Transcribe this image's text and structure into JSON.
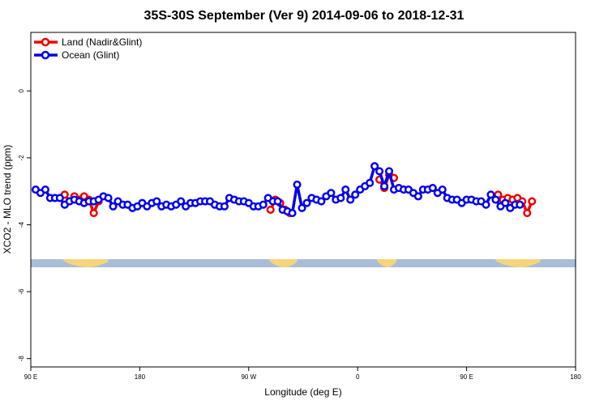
{
  "chart_data": {
    "type": "line",
    "title": "35S-30S September (Ver 9)   2014-09-06 to 2018-12-31",
    "xlabel": "Longitude (deg E)",
    "ylabel": "XCO2 - MLO trend (ppm)",
    "xlim": [
      90,
      540
    ],
    "ylim": [
      -8.25,
      1.75
    ],
    "x_ticks": [
      {
        "value": 90,
        "label": "90 E"
      },
      {
        "value": 180,
        "label": "180"
      },
      {
        "value": 270,
        "label": "90 W"
      },
      {
        "value": 360,
        "label": "0"
      },
      {
        "value": 450,
        "label": "90 E"
      },
      {
        "value": 540,
        "label": "180"
      }
    ],
    "y_ticks": [
      {
        "value": 0,
        "label": "0"
      },
      {
        "value": -2,
        "label": "-2"
      },
      {
        "value": -4,
        "label": "-4"
      },
      {
        "value": -6,
        "label": "-6"
      },
      {
        "value": -8,
        "label": "-8"
      }
    ],
    "legend_position": "top-left",
    "land_band": {
      "y": -5.15,
      "ocean_color": "#a9bdd8",
      "land_color": "#f5d57a",
      "land_segments": [
        [
          117,
          154
        ],
        [
          287,
          310
        ],
        [
          376,
          392
        ],
        [
          474,
          511
        ]
      ]
    },
    "series": [
      {
        "name": "Land (Nadir&Glint)",
        "color": "#ee0000",
        "segments": [
          [
            [
              118,
              -3.1
            ],
            [
              122,
              -3.3
            ],
            [
              126,
              -3.15
            ],
            [
              130,
              -3.25
            ],
            [
              134,
              -3.15
            ],
            [
              138,
              -3.25
            ],
            [
              142,
              -3.65
            ],
            [
              146,
              -3.3
            ]
          ],
          [
            [
              288,
              -3.55
            ],
            [
              292,
              -3.25
            ],
            [
              296,
              -3.35
            ],
            [
              300,
              -3.55
            ],
            [
              304,
              -3.65
            ]
          ],
          [
            [
              378,
              -2.65
            ],
            [
              382,
              -2.9
            ],
            [
              386,
              -2.5
            ],
            [
              390,
              -2.6
            ]
          ],
          [
            [
              476,
              -3.1
            ],
            [
              480,
              -3.25
            ],
            [
              484,
              -3.2
            ],
            [
              488,
              -3.25
            ],
            [
              492,
              -3.2
            ],
            [
              496,
              -3.3
            ],
            [
              500,
              -3.65
            ],
            [
              504,
              -3.3
            ]
          ]
        ]
      },
      {
        "name": "Ocean (Glint)",
        "color": "#0000ee",
        "points": [
          [
            94,
            -2.95
          ],
          [
            98,
            -3.05
          ],
          [
            102,
            -2.95
          ],
          [
            106,
            -3.2
          ],
          [
            110,
            -3.2
          ],
          [
            114,
            -3.2
          ],
          [
            118,
            -3.4
          ],
          [
            122,
            -3.3
          ],
          [
            126,
            -3.25
          ],
          [
            130,
            -3.3
          ],
          [
            134,
            -3.35
          ],
          [
            138,
            -3.3
          ],
          [
            142,
            -3.3
          ],
          [
            146,
            -3.25
          ],
          [
            150,
            -3.15
          ],
          [
            154,
            -3.2
          ],
          [
            158,
            -3.45
          ],
          [
            162,
            -3.3
          ],
          [
            166,
            -3.4
          ],
          [
            170,
            -3.4
          ],
          [
            174,
            -3.5
          ],
          [
            178,
            -3.45
          ],
          [
            182,
            -3.35
          ],
          [
            186,
            -3.45
          ],
          [
            190,
            -3.35
          ],
          [
            194,
            -3.3
          ],
          [
            198,
            -3.45
          ],
          [
            202,
            -3.4
          ],
          [
            206,
            -3.45
          ],
          [
            210,
            -3.4
          ],
          [
            214,
            -3.3
          ],
          [
            218,
            -3.45
          ],
          [
            222,
            -3.35
          ],
          [
            226,
            -3.35
          ],
          [
            230,
            -3.3
          ],
          [
            234,
            -3.3
          ],
          [
            238,
            -3.3
          ],
          [
            242,
            -3.4
          ],
          [
            246,
            -3.45
          ],
          [
            250,
            -3.45
          ],
          [
            254,
            -3.2
          ],
          [
            258,
            -3.25
          ],
          [
            262,
            -3.3
          ],
          [
            266,
            -3.3
          ],
          [
            270,
            -3.35
          ],
          [
            274,
            -3.45
          ],
          [
            278,
            -3.45
          ],
          [
            282,
            -3.4
          ],
          [
            286,
            -3.2
          ],
          [
            290,
            -3.3
          ],
          [
            294,
            -3.3
          ],
          [
            298,
            -3.55
          ],
          [
            302,
            -3.6
          ],
          [
            306,
            -3.65
          ],
          [
            310,
            -2.8
          ],
          [
            314,
            -3.5
          ],
          [
            318,
            -3.35
          ],
          [
            322,
            -3.2
          ],
          [
            326,
            -3.25
          ],
          [
            330,
            -3.3
          ],
          [
            334,
            -3.15
          ],
          [
            338,
            -3.05
          ],
          [
            342,
            -3.25
          ],
          [
            346,
            -3.2
          ],
          [
            350,
            -2.95
          ],
          [
            354,
            -3.25
          ],
          [
            358,
            -3.1
          ],
          [
            362,
            -2.95
          ],
          [
            366,
            -2.85
          ],
          [
            370,
            -2.75
          ],
          [
            374,
            -2.25
          ],
          [
            378,
            -2.4
          ],
          [
            382,
            -2.85
          ],
          [
            386,
            -2.4
          ],
          [
            390,
            -2.95
          ],
          [
            394,
            -2.9
          ],
          [
            398,
            -2.95
          ],
          [
            402,
            -2.95
          ],
          [
            406,
            -3.05
          ],
          [
            410,
            -3.15
          ],
          [
            414,
            -2.95
          ],
          [
            418,
            -2.95
          ],
          [
            422,
            -2.9
          ],
          [
            426,
            -3.05
          ],
          [
            430,
            -2.95
          ],
          [
            434,
            -3.2
          ],
          [
            438,
            -3.25
          ],
          [
            442,
            -3.25
          ],
          [
            446,
            -3.35
          ],
          [
            450,
            -3.25
          ],
          [
            454,
            -3.25
          ],
          [
            458,
            -3.3
          ],
          [
            462,
            -3.3
          ],
          [
            466,
            -3.4
          ],
          [
            470,
            -3.1
          ],
          [
            474,
            -3.25
          ],
          [
            478,
            -3.45
          ],
          [
            482,
            -3.35
          ],
          [
            486,
            -3.5
          ],
          [
            490,
            -3.4
          ],
          [
            494,
            -3.4
          ]
        ]
      }
    ]
  }
}
